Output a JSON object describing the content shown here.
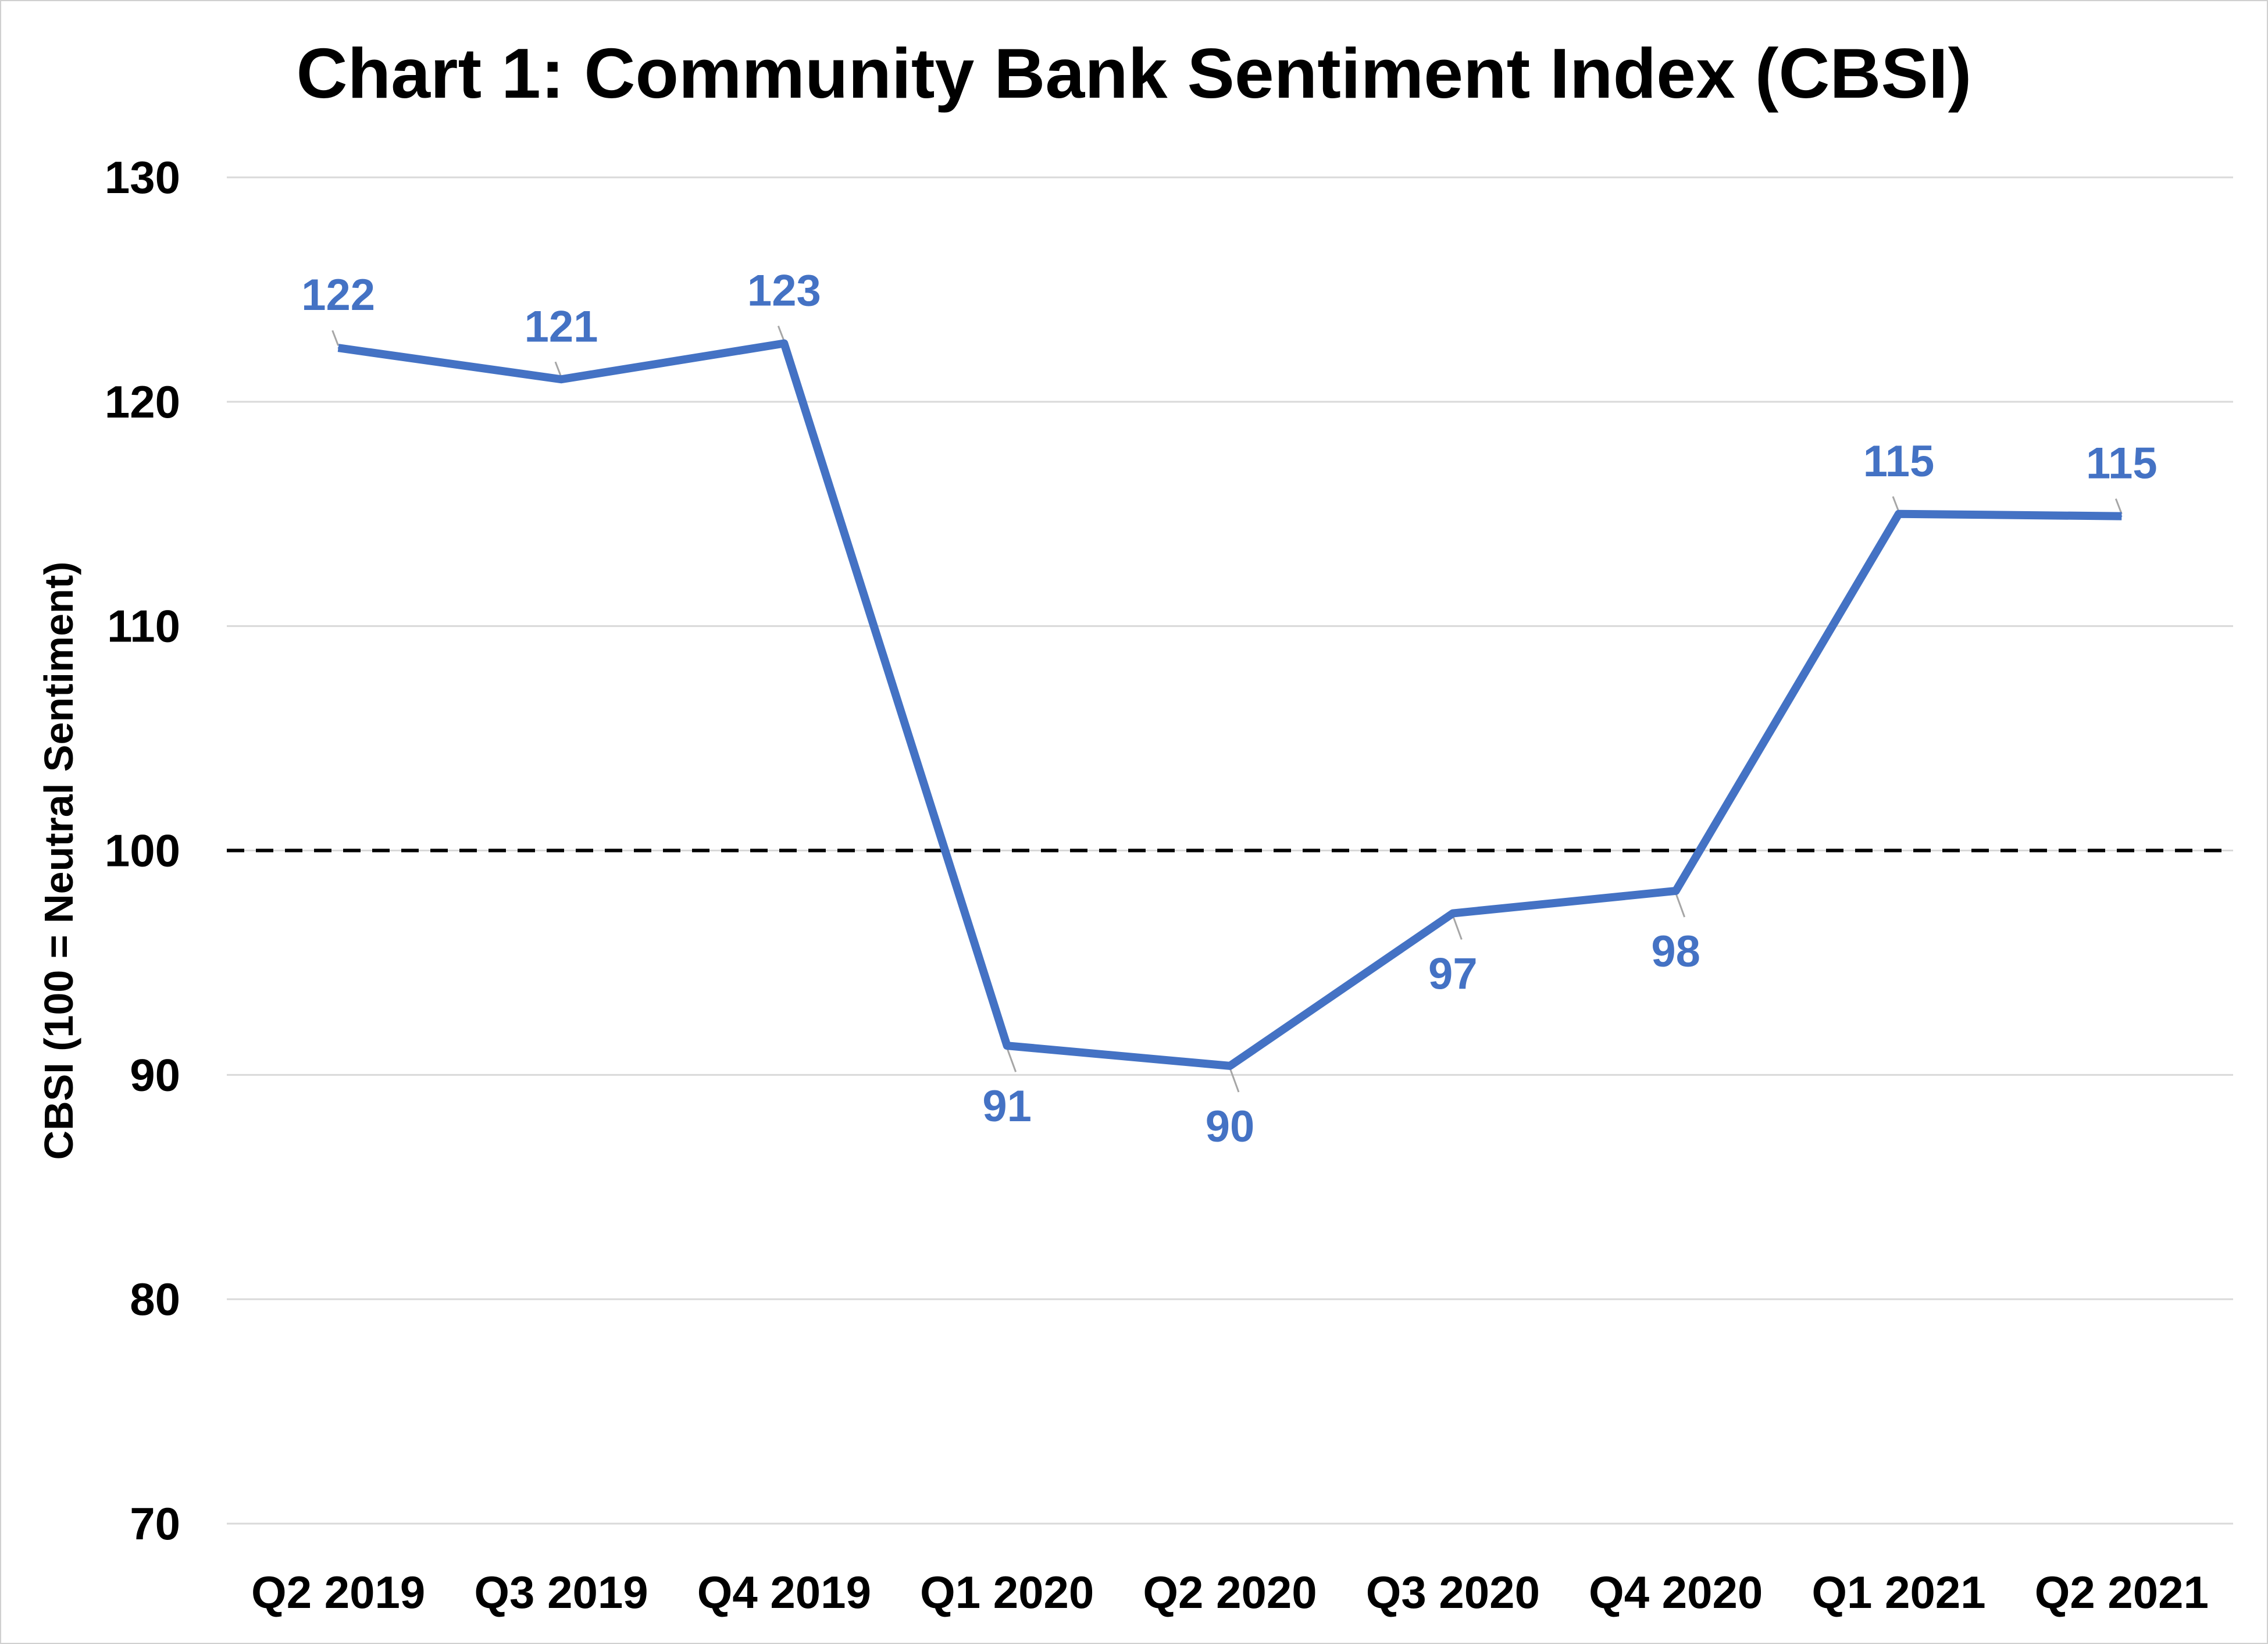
{
  "chart_data": {
    "type": "line",
    "title": "Chart 1: Community Bank Sentiment Index (CBSI)",
    "xlabel": "",
    "ylabel": "CBSI (100 = Neutral Sentiment)",
    "ylim": [
      70,
      130
    ],
    "yticks": [
      "70",
      "80",
      "90",
      "100",
      "110",
      "120",
      "130"
    ],
    "categories": [
      "Q2 2019",
      "Q3 2019",
      "Q4 2019",
      "Q1 2020",
      "Q2 2020",
      "Q3 2020",
      "Q4 2020",
      "Q1 2021",
      "Q2 2021"
    ],
    "series": [
      {
        "values": [
          122.4,
          121.0,
          122.6,
          91.3,
          90.4,
          97.2,
          98.2,
          115.0,
          114.9
        ],
        "labels": [
          "122",
          "121",
          "123",
          "91",
          "90",
          "97",
          "98",
          "115",
          "115"
        ],
        "color": "#4472C4"
      }
    ],
    "reference_line": {
      "value": 100,
      "style": "dashed",
      "color": "#000000"
    },
    "grid": true,
    "legend": "none"
  }
}
